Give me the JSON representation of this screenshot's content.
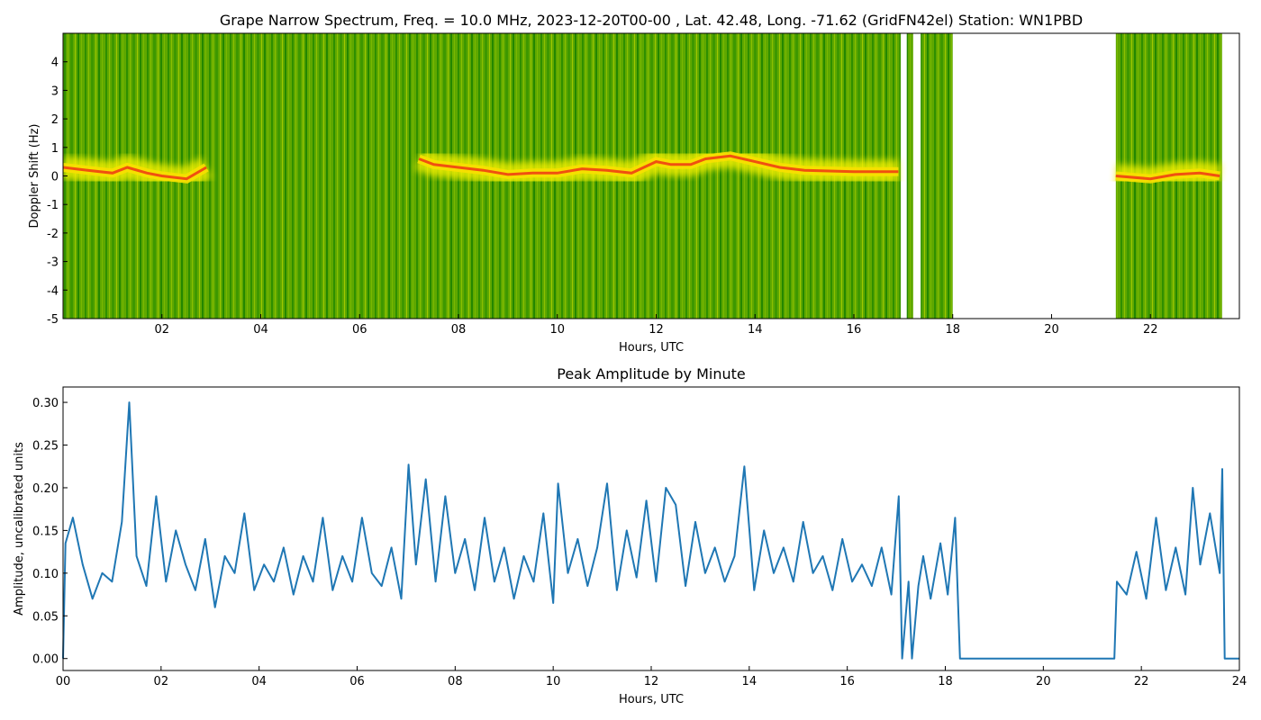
{
  "chart_data": [
    {
      "type": "spectrogram",
      "title": "Grape Narrow Spectrum, Freq. = 10.0 MHz, 2023-12-20T00-00 , Lat.  42.48, Long. -71.62 (GridFN42el) Station: WN1PBD",
      "xlabel": "Hours, UTC",
      "ylabel": "Doppler Shift (Hz)",
      "xlim": [
        0,
        23.8
      ],
      "ylim": [
        -5,
        5
      ],
      "xticks": [
        {
          "value": 2,
          "label": "02"
        },
        {
          "value": 4,
          "label": "04"
        },
        {
          "value": 6,
          "label": "06"
        },
        {
          "value": 8,
          "label": "08"
        },
        {
          "value": 10,
          "label": "10"
        },
        {
          "value": 12,
          "label": "12"
        },
        {
          "value": 14,
          "label": "14"
        },
        {
          "value": 16,
          "label": "16"
        },
        {
          "value": 18,
          "label": "18"
        },
        {
          "value": 20,
          "label": "20"
        },
        {
          "value": 22,
          "label": "22"
        }
      ],
      "yticks": [
        -5,
        -4,
        -3,
        -2,
        -1,
        0,
        1,
        2,
        3,
        4
      ],
      "data_spans": [
        [
          0,
          16.95
        ],
        [
          17.07,
          17.2
        ],
        [
          17.35,
          18.0
        ],
        [
          21.3,
          23.45
        ]
      ],
      "x": [
        0,
        0.5,
        1.0,
        1.3,
        1.7,
        2.0,
        2.5,
        2.9,
        5,
        7.2,
        7.5,
        8,
        8.5,
        9,
        9.5,
        10,
        10.5,
        11,
        11.5,
        12,
        12.3,
        12.7,
        13,
        13.5,
        14,
        14.5,
        15,
        16,
        16.9,
        20,
        21.3,
        22,
        22.5,
        23,
        23.4
      ],
      "values": [
        0.3,
        0.2,
        0.1,
        0.3,
        0.1,
        0,
        -0.1,
        0.3,
        null,
        0.6,
        0.4,
        0.3,
        0.2,
        0.05,
        0.1,
        0.1,
        0.25,
        0.2,
        0.1,
        0.5,
        0.4,
        0.4,
        0.6,
        0.7,
        0.5,
        0.3,
        0.2,
        0.15,
        0.15,
        null,
        0,
        -0.1,
        0.05,
        0.1,
        0
      ],
      "color": "#6aa800"
    },
    {
      "type": "line",
      "title": "Peak Amplitude by Minute",
      "xlabel": "Hours, UTC",
      "ylabel": "Amplitude, uncalibrated units",
      "xlim": [
        0,
        24
      ],
      "ylim": [
        -0.014,
        0.318
      ],
      "xticks": [
        {
          "value": 0,
          "label": "00"
        },
        {
          "value": 2,
          "label": "02"
        },
        {
          "value": 4,
          "label": "04"
        },
        {
          "value": 6,
          "label": "06"
        },
        {
          "value": 8,
          "label": "08"
        },
        {
          "value": 10,
          "label": "10"
        },
        {
          "value": 12,
          "label": "12"
        },
        {
          "value": 14,
          "label": "14"
        },
        {
          "value": 16,
          "label": "16"
        },
        {
          "value": 18,
          "label": "18"
        },
        {
          "value": 20,
          "label": "20"
        },
        {
          "value": 22,
          "label": "22"
        },
        {
          "value": 24,
          "label": "24"
        }
      ],
      "yticks": [
        {
          "value": 0,
          "label": "0.00"
        },
        0.05,
        {
          "value": 0.1,
          "label": "0.10"
        },
        0.15,
        {
          "value": 0.2,
          "label": "0.20"
        },
        0.25,
        {
          "value": 0.3,
          "label": "0.30"
        }
      ],
      "color": "#1f77b4",
      "x": [
        0,
        0.05,
        0.2,
        0.4,
        0.6,
        0.8,
        1.0,
        1.2,
        1.35,
        1.5,
        1.7,
        1.9,
        2.1,
        2.3,
        2.5,
        2.7,
        2.9,
        3.1,
        3.3,
        3.5,
        3.7,
        3.9,
        4.1,
        4.3,
        4.5,
        4.7,
        4.9,
        5.1,
        5.3,
        5.5,
        5.7,
        5.9,
        6.1,
        6.3,
        6.5,
        6.7,
        6.9,
        7.05,
        7.2,
        7.4,
        7.6,
        7.8,
        8.0,
        8.2,
        8.4,
        8.6,
        8.8,
        9.0,
        9.2,
        9.4,
        9.6,
        9.8,
        10.0,
        10.1,
        10.3,
        10.5,
        10.7,
        10.9,
        11.1,
        11.3,
        11.5,
        11.7,
        11.9,
        12.1,
        12.3,
        12.5,
        12.7,
        12.9,
        13.1,
        13.3,
        13.5,
        13.7,
        13.9,
        14.1,
        14.3,
        14.5,
        14.7,
        14.9,
        15.1,
        15.3,
        15.5,
        15.7,
        15.9,
        16.1,
        16.3,
        16.5,
        16.7,
        16.9,
        17.05,
        17.12,
        17.25,
        17.32,
        17.45,
        17.55,
        17.7,
        17.9,
        18.05,
        18.2,
        18.3,
        21.45,
        21.5,
        21.7,
        21.9,
        22.1,
        22.3,
        22.5,
        22.7,
        22.9,
        23.05,
        23.2,
        23.4,
        23.6,
        23.65,
        23.7,
        24
      ],
      "values": [
        0,
        0.135,
        0.165,
        0.11,
        0.07,
        0.1,
        0.09,
        0.16,
        0.3,
        0.12,
        0.085,
        0.19,
        0.09,
        0.15,
        0.11,
        0.08,
        0.14,
        0.06,
        0.12,
        0.1,
        0.17,
        0.08,
        0.11,
        0.09,
        0.13,
        0.075,
        0.12,
        0.09,
        0.165,
        0.08,
        0.12,
        0.09,
        0.165,
        0.1,
        0.085,
        0.13,
        0.07,
        0.227,
        0.11,
        0.21,
        0.09,
        0.19,
        0.1,
        0.14,
        0.08,
        0.165,
        0.09,
        0.13,
        0.07,
        0.12,
        0.09,
        0.17,
        0.065,
        0.205,
        0.1,
        0.14,
        0.085,
        0.13,
        0.205,
        0.08,
        0.15,
        0.095,
        0.185,
        0.09,
        0.2,
        0.18,
        0.085,
        0.16,
        0.1,
        0.13,
        0.09,
        0.12,
        0.225,
        0.08,
        0.15,
        0.1,
        0.13,
        0.09,
        0.16,
        0.1,
        0.12,
        0.08,
        0.14,
        0.09,
        0.11,
        0.085,
        0.13,
        0.075,
        0.19,
        0,
        0.09,
        0,
        0.085,
        0.12,
        0.07,
        0.135,
        0.075,
        0.165,
        0,
        0,
        0.09,
        0.075,
        0.125,
        0.07,
        0.165,
        0.08,
        0.13,
        0.075,
        0.2,
        0.11,
        0.17,
        0.1,
        0.222,
        0,
        0
      ]
    }
  ]
}
